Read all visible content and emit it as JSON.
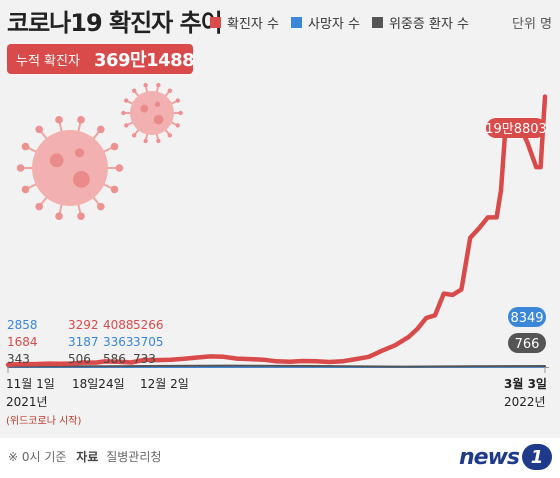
{
  "title": "코로나19 확진자 추이",
  "unit_label": "단위 명",
  "cumulative": {
    "label": "누적 확진자",
    "value": "369만1488"
  },
  "legend": [
    {
      "name": "확진자 수",
      "color": "#d94b4b"
    },
    {
      "name": "사망자 수",
      "color": "#3a86d9"
    },
    {
      "name": "위중증 환자 수",
      "color": "#555555"
    }
  ],
  "chart_data": {
    "type": "line",
    "x_labels": [
      {
        "day": 0,
        "text": "11월 1일"
      },
      {
        "day": 23,
        "text": "18일24일"
      },
      {
        "day": 31,
        "text": "12월 2일"
      },
      {
        "day": 122,
        "text": "3월 3일"
      }
    ],
    "start_year": "2021년",
    "start_note": "(위드코로나 시작)",
    "end_year": "2022년",
    "ylim": [
      0,
      200000
    ],
    "series": [
      {
        "name": "확진자 수",
        "color": "#d94b4b",
        "points": [
          [
            0,
            1684
          ],
          [
            3,
            2200
          ],
          [
            6,
            2100
          ],
          [
            9,
            2500
          ],
          [
            12,
            2400
          ],
          [
            15,
            2600
          ],
          [
            17,
            3292
          ],
          [
            20,
            3200
          ],
          [
            22,
            4088
          ],
          [
            25,
            3900
          ],
          [
            28,
            3300
          ],
          [
            31,
            5266
          ],
          [
            34,
            5100
          ],
          [
            37,
            5300
          ],
          [
            40,
            6000
          ],
          [
            43,
            7000
          ],
          [
            46,
            7800
          ],
          [
            49,
            7500
          ],
          [
            52,
            6200
          ],
          [
            55,
            5800
          ],
          [
            58,
            5400
          ],
          [
            61,
            4200
          ],
          [
            64,
            3800
          ],
          [
            67,
            4400
          ],
          [
            70,
            4300
          ],
          [
            73,
            3700
          ],
          [
            76,
            4200
          ],
          [
            79,
            5800
          ],
          [
            82,
            7500
          ],
          [
            85,
            12000
          ],
          [
            88,
            16000
          ],
          [
            91,
            22000
          ],
          [
            93,
            28000
          ],
          [
            95,
            36000
          ],
          [
            97,
            38000
          ],
          [
            99,
            54000
          ],
          [
            101,
            53000
          ],
          [
            103,
            57000
          ],
          [
            105,
            95000
          ],
          [
            107,
            102000
          ],
          [
            109,
            110000
          ],
          [
            111,
            110000
          ],
          [
            112,
            130000
          ],
          [
            113,
            175000
          ],
          [
            115,
            171000
          ],
          [
            117,
            172000
          ],
          [
            118,
            165000
          ],
          [
            120,
            147000
          ],
          [
            121,
            147000
          ],
          [
            122,
            198803
          ]
        ]
      },
      {
        "name": "사망자 수",
        "color": "#3a86d9",
        "points": [
          [
            0,
            10
          ],
          [
            30,
            35
          ],
          [
            60,
            55
          ],
          [
            90,
            30
          ],
          [
            105,
            60
          ],
          [
            115,
            120
          ],
          [
            122,
            186
          ]
        ]
      },
      {
        "name": "위중증 환자 수",
        "color": "#555555",
        "points": [
          [
            0,
            343
          ],
          [
            17,
            506
          ],
          [
            22,
            586
          ],
          [
            31,
            733
          ],
          [
            50,
            1000
          ],
          [
            70,
            700
          ],
          [
            90,
            300
          ],
          [
            105,
            500
          ],
          [
            122,
            766
          ]
        ]
      }
    ],
    "annotations": [
      {
        "day": 0,
        "lines": [
          "2858",
          "1684",
          "343"
        ]
      },
      {
        "day": 17,
        "lines": [
          "3292",
          "3187",
          "506"
        ]
      },
      {
        "day": 22,
        "lines": [
          "4088",
          "3363",
          "586"
        ]
      },
      {
        "day": 31,
        "lines": [
          "5266",
          "3705",
          "733"
        ]
      }
    ],
    "end_labels": [
      {
        "series": "확진자 수",
        "text": "19만8803",
        "value": 198803
      },
      {
        "series": "사망자 수",
        "text": "8349"
      },
      {
        "series": "위중증 환자 수",
        "text": "766"
      }
    ]
  },
  "footer": {
    "note": "※ 0시 기준",
    "source_label": "자료",
    "source": "질병관리청"
  },
  "logo": {
    "text": "news",
    "mark": "1"
  }
}
